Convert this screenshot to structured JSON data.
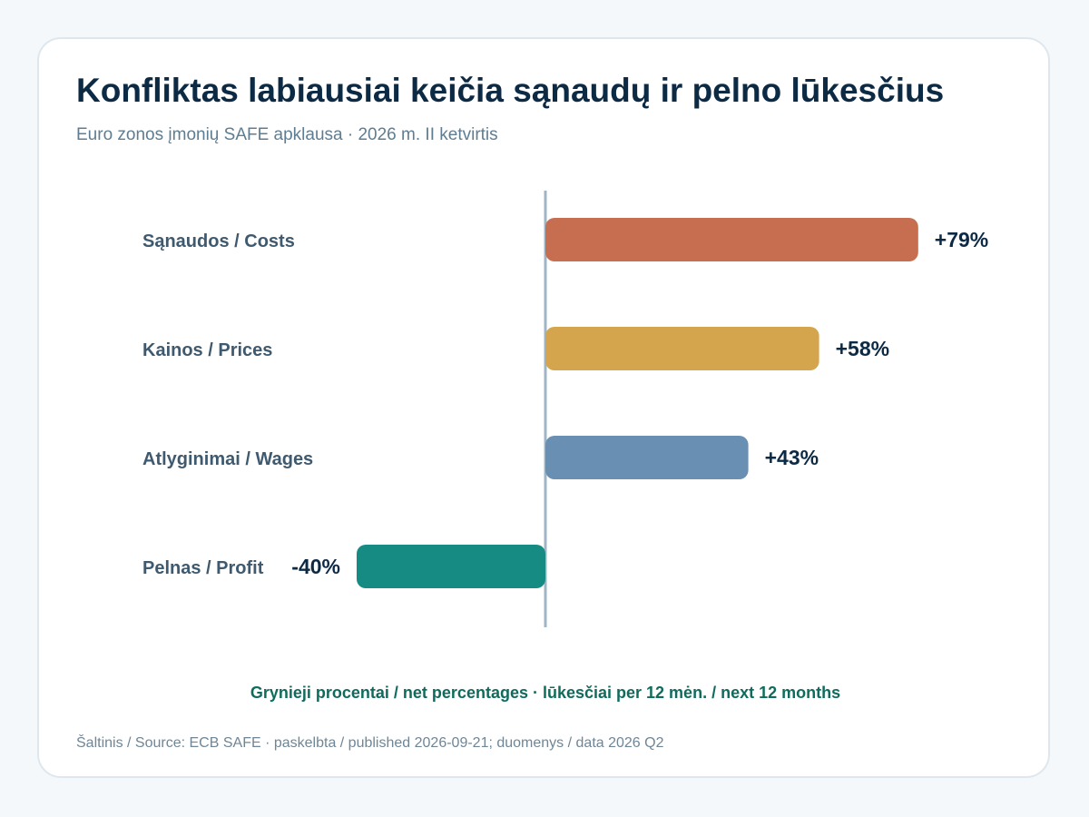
{
  "header": {
    "title": "Konfliktas labiausiai keičia sąnaudų ir pelno lūkesčius",
    "subtitle": "Euro zonos įmonių SAFE apklausa · 2026 m. II ketvirtis"
  },
  "footer": {
    "note": "Grynieji procentai / net percentages · lūkesčiai per 12 mėn. / next 12 months",
    "source": "Šaltinis / Source: ECB SAFE · paskelbta / published 2026-09-21; duomenys / data 2026 Q2"
  },
  "chart_data": {
    "type": "bar",
    "orientation": "horizontal",
    "title": "Konfliktas labiausiai keičia sąnaudų ir pelno lūkesčius",
    "subtitle": "Euro zonos įmonių SAFE apklausa · 2026 m. II ketvirtis",
    "categories": [
      "Sąnaudos / Costs",
      "Kainos / Prices",
      "Atlyginimai / Wages",
      "Pelnas / Profit"
    ],
    "values": [
      79,
      58,
      43,
      -40
    ],
    "value_labels": [
      "+79%",
      "+58%",
      "+43%",
      "-40%"
    ],
    "colors": [
      "#c76e50",
      "#d4a54d",
      "#6990b3",
      "#168b84"
    ],
    "baseline_color": "#9fb4c4",
    "xlim": [
      -40,
      79
    ],
    "grid": false,
    "legend": "none"
  }
}
